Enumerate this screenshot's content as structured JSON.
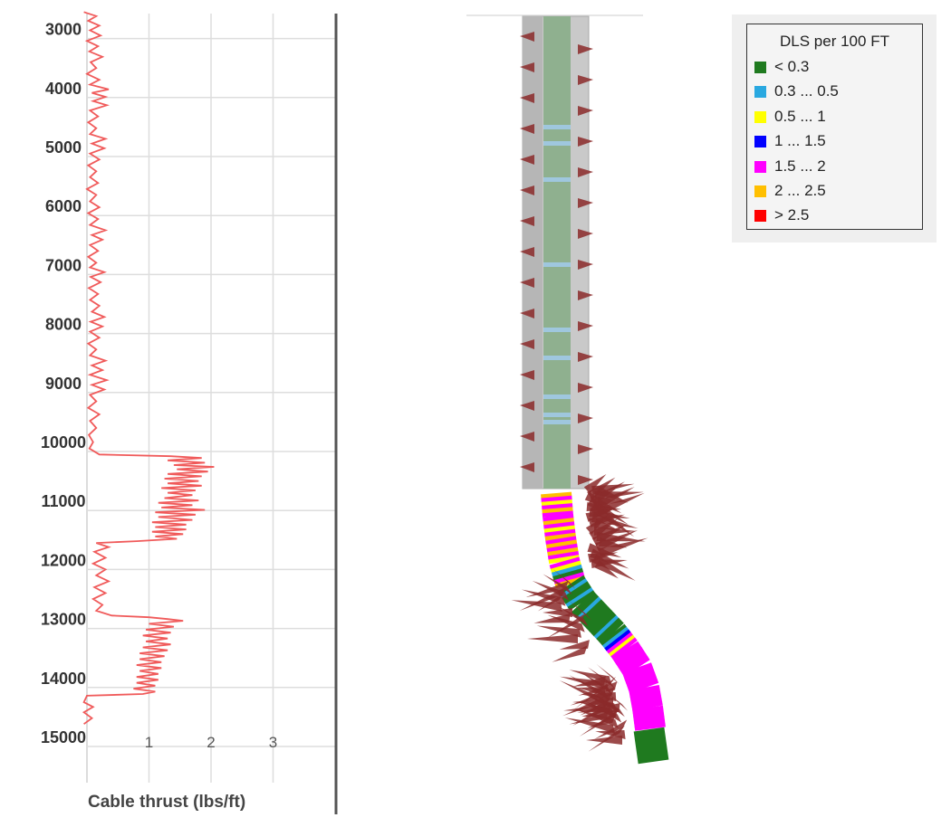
{
  "chart_data": [
    {
      "type": "line",
      "xlabel": "Cable thrust (lbs/ft)",
      "ylabel": "",
      "xlim": [
        -1,
        4
      ],
      "ylim": [
        2500,
        15000
      ],
      "y_inverted": true,
      "xticks": [
        1,
        2,
        3
      ],
      "yticks": [
        3000,
        4000,
        5000,
        6000,
        7000,
        8000,
        9000,
        10000,
        11000,
        12000,
        13000,
        14000,
        15000
      ],
      "grid": true,
      "series": [
        {
          "color": "#f05a5a",
          "points": [
            [
              -0.05,
              2550
            ],
            [
              0.15,
              2620
            ],
            [
              0.02,
              2700
            ],
            [
              0.2,
              2780
            ],
            [
              0.05,
              2860
            ],
            [
              0.22,
              2950
            ],
            [
              0.0,
              3040
            ],
            [
              0.18,
              3130
            ],
            [
              0.04,
              3220
            ],
            [
              0.25,
              3310
            ],
            [
              0.06,
              3400
            ],
            [
              0.15,
              3500
            ],
            [
              0.0,
              3600
            ],
            [
              0.2,
              3700
            ],
            [
              0.05,
              3780
            ],
            [
              0.35,
              3860
            ],
            [
              0.08,
              3920
            ],
            [
              0.3,
              3990
            ],
            [
              0.1,
              4060
            ],
            [
              0.32,
              4130
            ],
            [
              0.05,
              4220
            ],
            [
              0.18,
              4320
            ],
            [
              0.02,
              4420
            ],
            [
              0.15,
              4520
            ],
            [
              0.05,
              4620
            ],
            [
              0.3,
              4700
            ],
            [
              0.08,
              4780
            ],
            [
              0.28,
              4860
            ],
            [
              0.05,
              4950
            ],
            [
              0.2,
              5050
            ],
            [
              0.02,
              5150
            ],
            [
              0.15,
              5250
            ],
            [
              0.05,
              5350
            ],
            [
              0.18,
              5450
            ],
            [
              0.0,
              5550
            ],
            [
              0.15,
              5650
            ],
            [
              0.05,
              5760
            ],
            [
              0.2,
              5860
            ],
            [
              0.02,
              5960
            ],
            [
              0.18,
              6060
            ],
            [
              0.05,
              6160
            ],
            [
              0.3,
              6250
            ],
            [
              0.08,
              6330
            ],
            [
              0.25,
              6410
            ],
            [
              0.05,
              6500
            ],
            [
              0.18,
              6600
            ],
            [
              0.02,
              6700
            ],
            [
              0.15,
              6800
            ],
            [
              0.05,
              6880
            ],
            [
              0.28,
              6960
            ],
            [
              0.06,
              7040
            ],
            [
              0.22,
              7130
            ],
            [
              0.03,
              7230
            ],
            [
              0.18,
              7330
            ],
            [
              0.05,
              7430
            ],
            [
              0.2,
              7530
            ],
            [
              0.08,
              7630
            ],
            [
              0.28,
              7720
            ],
            [
              0.06,
              7800
            ],
            [
              0.25,
              7880
            ],
            [
              0.05,
              7970
            ],
            [
              0.2,
              8070
            ],
            [
              0.02,
              8170
            ],
            [
              0.15,
              8270
            ],
            [
              0.05,
              8370
            ],
            [
              0.3,
              8460
            ],
            [
              0.08,
              8540
            ],
            [
              0.25,
              8620
            ],
            [
              0.05,
              8700
            ],
            [
              0.32,
              8790
            ],
            [
              0.08,
              8870
            ],
            [
              0.28,
              8950
            ],
            [
              0.05,
              9040
            ],
            [
              0.15,
              9150
            ],
            [
              0.02,
              9260
            ],
            [
              0.2,
              9370
            ],
            [
              0.05,
              9480
            ],
            [
              0.15,
              9600
            ],
            [
              0.03,
              9720
            ],
            [
              0.1,
              9840
            ],
            [
              0.04,
              9950
            ],
            [
              0.2,
              10050
            ],
            [
              1.35,
              10080
            ],
            [
              1.85,
              10110
            ],
            [
              1.3,
              10150
            ],
            [
              1.9,
              10190
            ],
            [
              1.4,
              10230
            ],
            [
              2.05,
              10260
            ],
            [
              1.45,
              10300
            ],
            [
              1.95,
              10340
            ],
            [
              1.3,
              10380
            ],
            [
              1.85,
              10420
            ],
            [
              1.25,
              10460
            ],
            [
              1.8,
              10500
            ],
            [
              1.3,
              10540
            ],
            [
              1.85,
              10580
            ],
            [
              1.2,
              10620
            ],
            [
              1.75,
              10660
            ],
            [
              1.3,
              10700
            ],
            [
              1.7,
              10740
            ],
            [
              1.25,
              10790
            ],
            [
              1.8,
              10830
            ],
            [
              1.15,
              10870
            ],
            [
              1.7,
              10910
            ],
            [
              1.2,
              10950
            ],
            [
              1.9,
              10990
            ],
            [
              1.1,
              11030
            ],
            [
              1.75,
              11070
            ],
            [
              1.15,
              11110
            ],
            [
              1.7,
              11160
            ],
            [
              1.05,
              11200
            ],
            [
              1.6,
              11240
            ],
            [
              1.1,
              11280
            ],
            [
              1.6,
              11320
            ],
            [
              1.05,
              11360
            ],
            [
              1.55,
              11400
            ],
            [
              1.1,
              11440
            ],
            [
              1.45,
              11480
            ],
            [
              0.8,
              11520
            ],
            [
              0.15,
              11550
            ],
            [
              0.35,
              11620
            ],
            [
              0.12,
              11700
            ],
            [
              0.3,
              11800
            ],
            [
              0.1,
              11900
            ],
            [
              0.3,
              12000
            ],
            [
              0.15,
              12100
            ],
            [
              0.35,
              12200
            ],
            [
              0.12,
              12300
            ],
            [
              0.3,
              12400
            ],
            [
              0.1,
              12500
            ],
            [
              0.25,
              12600
            ],
            [
              0.15,
              12700
            ],
            [
              0.4,
              12780
            ],
            [
              1.0,
              12810
            ],
            [
              1.3,
              12840
            ],
            [
              1.55,
              12870
            ],
            [
              1.0,
              12920
            ],
            [
              1.4,
              12970
            ],
            [
              0.95,
              13020
            ],
            [
              1.35,
              13070
            ],
            [
              0.9,
              13120
            ],
            [
              1.3,
              13170
            ],
            [
              0.95,
              13220
            ],
            [
              1.35,
              13270
            ],
            [
              0.9,
              13320
            ],
            [
              1.3,
              13370
            ],
            [
              0.85,
              13420
            ],
            [
              1.25,
              13470
            ],
            [
              0.85,
              13520
            ],
            [
              1.2,
              13570
            ],
            [
              0.8,
              13620
            ],
            [
              1.2,
              13670
            ],
            [
              0.85,
              13720
            ],
            [
              1.15,
              13770
            ],
            [
              0.8,
              13820
            ],
            [
              1.15,
              13870
            ],
            [
              0.8,
              13920
            ],
            [
              1.1,
              13970
            ],
            [
              0.75,
              14020
            ],
            [
              1.1,
              14070
            ],
            [
              0.9,
              14110
            ],
            [
              0.0,
              14140
            ],
            [
              -0.05,
              14250
            ],
            [
              0.1,
              14330
            ],
            [
              -0.05,
              14420
            ],
            [
              0.08,
              14520
            ],
            [
              -0.05,
              14620
            ]
          ]
        }
      ]
    },
    {
      "type": "other",
      "title": "",
      "legend_title": "DLS per 100 FT",
      "legend_placement": "top-right",
      "legend": [
        {
          "label": "< 0.3",
          "color": "#1f7a1f"
        },
        {
          "label": "0.3 ... 0.5",
          "color": "#29a8e0"
        },
        {
          "label": "0.5 ... 1",
          "color": "#ffff00"
        },
        {
          "label": "1 ... 1.5",
          "color": "#0000ff"
        },
        {
          "label": "1.5 ... 2",
          "color": "#ff00ff"
        },
        {
          "label": "2 ... 2.5",
          "color": "#ffbf00"
        },
        {
          "label": "> 2.5",
          "color": "#ff0000"
        }
      ],
      "colors": {
        "casing": "#c8c8c8",
        "casing_green": "#8fb08f",
        "arrows": "#8b2a2a"
      }
    }
  ]
}
